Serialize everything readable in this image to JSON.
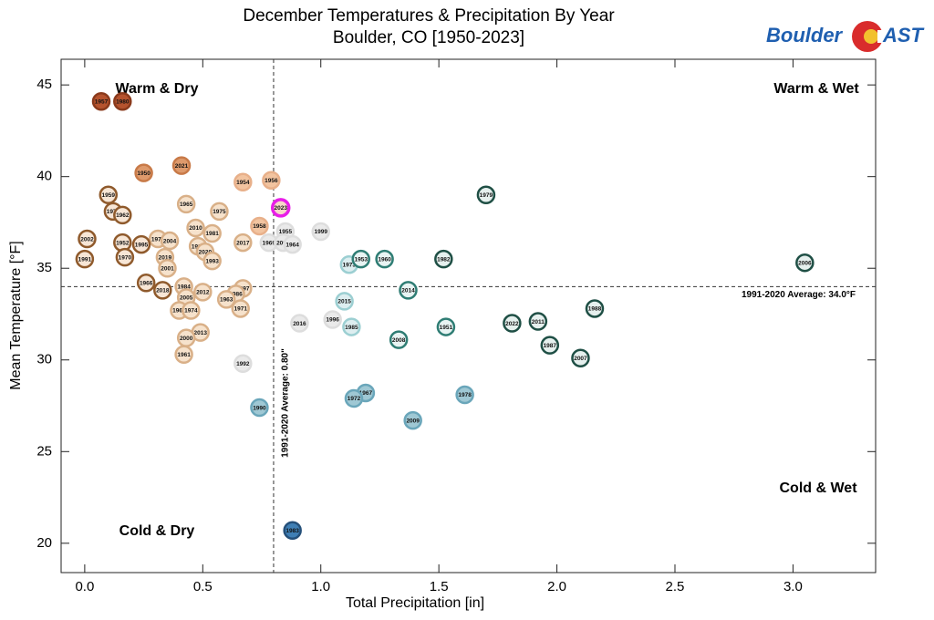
{
  "logo": {
    "left": "Boulder",
    "right": "AST"
  },
  "chart_data": {
    "type": "scatter",
    "title": "December Temperatures & Precipitation By Year",
    "subtitle": "Boulder, CO [1950-2023]",
    "x_label": "Total Precipitation [in]",
    "y_label": "Mean Temperature [°F]",
    "xlim": [
      -0.1,
      3.35
    ],
    "ylim": [
      18.4,
      46.4
    ],
    "xticks": [
      {
        "value": 0,
        "label": "0.0"
      },
      0.5,
      {
        "value": 1,
        "label": "1.0"
      },
      1.5,
      {
        "value": 2,
        "label": "2.0"
      },
      2.5,
      {
        "value": 3,
        "label": "3.0"
      }
    ],
    "yticks": [
      20,
      25,
      30,
      35,
      40,
      45
    ],
    "reference_lines": [
      {
        "axis": "y",
        "value": 34.0,
        "label": "1991-2020 Average: 34.0°F"
      },
      {
        "axis": "x",
        "value": 0.8,
        "label": "1991-2020 Average: 0.80\""
      }
    ],
    "quadrant_labels": [
      "Warm & Dry",
      "Warm & Wet",
      "Cold & Dry",
      "Cold & Wet"
    ],
    "point_labels": [
      "1957",
      "1980",
      "1950",
      "2021",
      "1954",
      "1956",
      "2023",
      "1959",
      "1965",
      "1975",
      "1977",
      "1962",
      "1958",
      "1955",
      "1999",
      "2010",
      "1981",
      "2002",
      "1976",
      "2004",
      "2017",
      "1952",
      "1995",
      "1969",
      "2003",
      "1964",
      "1994",
      "2020",
      "2019",
      "1970",
      "1993",
      "1991",
      "2001",
      "1973",
      "1953",
      "1960",
      "1982",
      "1979",
      "2006",
      "1966",
      "2018",
      "1984",
      "1997",
      "2014",
      "2012",
      "1986",
      "2005",
      "1963",
      "2015",
      "1971",
      "1968",
      "1974",
      "1988",
      "1996",
      "2016",
      "2011",
      "2022",
      "1985",
      "1951",
      "2013",
      "2000",
      "2008",
      "1987",
      "1961",
      "2007",
      "1992",
      "1990",
      "1967",
      "1972",
      "1978",
      "2009",
      "1983"
    ],
    "x": [
      0.07,
      0.16,
      0.25,
      0.41,
      0.67,
      0.79,
      0.83,
      0.1,
      0.43,
      0.57,
      0.12,
      0.16,
      0.74,
      0.85,
      1.0,
      0.47,
      0.54,
      0.01,
      0.31,
      0.36,
      0.67,
      0.16,
      0.24,
      0.78,
      0.84,
      0.88,
      0.48,
      0.51,
      0.34,
      0.17,
      0.54,
      0.0,
      0.35,
      1.12,
      1.17,
      1.27,
      1.52,
      1.7,
      3.05,
      0.26,
      0.33,
      0.42,
      0.67,
      1.37,
      0.5,
      0.64,
      0.43,
      0.6,
      1.1,
      0.66,
      0.4,
      0.45,
      2.16,
      1.05,
      0.91,
      1.92,
      1.81,
      1.13,
      1.53,
      0.49,
      0.43,
      1.33,
      1.97,
      0.42,
      2.1,
      0.67,
      0.74,
      1.19,
      1.14,
      1.61,
      1.39,
      0.88
    ],
    "values": [
      44.1,
      44.1,
      40.2,
      40.6,
      39.7,
      39.8,
      38.3,
      39.0,
      38.5,
      38.1,
      38.1,
      37.9,
      37.3,
      37.0,
      37.0,
      37.2,
      36.9,
      36.6,
      36.6,
      36.5,
      36.4,
      36.4,
      36.3,
      36.4,
      36.4,
      36.3,
      36.2,
      35.9,
      35.6,
      35.6,
      35.4,
      35.5,
      35.0,
      35.2,
      35.5,
      35.5,
      35.5,
      39.0,
      35.3,
      34.2,
      33.8,
      34.0,
      33.9,
      33.8,
      33.7,
      33.6,
      33.4,
      33.3,
      33.2,
      32.8,
      32.7,
      32.7,
      32.8,
      32.2,
      32.0,
      32.1,
      32.0,
      31.8,
      31.8,
      31.5,
      31.2,
      31.1,
      30.8,
      30.3,
      30.1,
      29.8,
      27.4,
      28.2,
      27.9,
      28.1,
      26.7,
      20.7
    ],
    "colors": [
      "#b5532e",
      "#b5532e",
      "#de9a6c",
      "#de9a6c",
      "#f2c4a0",
      "#f2c4a0",
      "#f7d8c8",
      "#f7e6d6",
      "#f6e2cc",
      "#f6e2cc",
      "#f7e6d6",
      "#f7e6d6",
      "#f2c4a0",
      "#eaeaea",
      "#eaeaea",
      "#f6e2cc",
      "#f6e2cc",
      "#f7e6d6",
      "#f6e2cc",
      "#f6e2cc",
      "#f6e2cc",
      "#f7e6d6",
      "#f7e6d6",
      "#eaeaea",
      "#eaeaea",
      "#eaeaea",
      "#f6e2cc",
      "#f6e2cc",
      "#f6e2cc",
      "#f7e6d6",
      "#f6e2cc",
      "#f7e6d6",
      "#f6e2cc",
      "#ddeef0",
      "#e8f4f3",
      "#e8f4f3",
      "#e6f0ee",
      "#e6f0ee",
      "#e6f0ee",
      "#f7e6d6",
      "#f7e6d6",
      "#f6e2cc",
      "#f6e2cc",
      "#e8f4f3",
      "#f6e2cc",
      "#f6e2cc",
      "#f6e2cc",
      "#f6e2cc",
      "#ddeef0",
      "#f6e2cc",
      "#f6e2cc",
      "#f6e2cc",
      "#e6f0ee",
      "#eaeaea",
      "#eaeaea",
      "#e6f0ee",
      "#e6f0ee",
      "#ddeef0",
      "#e8f4f3",
      "#f6e2cc",
      "#f6e2cc",
      "#e8f4f3",
      "#e6f0ee",
      "#f6e2cc",
      "#e6f0ee",
      "#eaeaea",
      "#9fc8d4",
      "#9fc8d4",
      "#9fc8d4",
      "#9fc8d4",
      "#9fc8d4",
      "#3f7fb5"
    ],
    "edge_colors": [
      "#8a3a1c",
      "#8a3a1c",
      "#c87a48",
      "#c87a48",
      "#e8b08a",
      "#e8b08a",
      "#e81ee8",
      "#8f5a2c",
      "#d9b088",
      "#d9b088",
      "#8f5a2c",
      "#8f5a2c",
      "#e8b08a",
      "#dddddd",
      "#dddddd",
      "#d9b088",
      "#d9b088",
      "#8f5a2c",
      "#d9b088",
      "#d9b088",
      "#d9b088",
      "#8f5a2c",
      "#8f5a2c",
      "#dddddd",
      "#dddddd",
      "#dddddd",
      "#d9b088",
      "#d9b088",
      "#d9b088",
      "#8f5a2c",
      "#d9b088",
      "#8f5a2c",
      "#d9b088",
      "#9ccfd2",
      "#2f7d74",
      "#2f7d74",
      "#1f4f45",
      "#1f4f45",
      "#1f4f45",
      "#8f5a2c",
      "#8f5a2c",
      "#d9b088",
      "#d9b088",
      "#2f7d74",
      "#d9b088",
      "#d9b088",
      "#d9b088",
      "#d9b088",
      "#9ccfd2",
      "#d9b088",
      "#d9b088",
      "#d9b088",
      "#1f4f45",
      "#dddddd",
      "#dddddd",
      "#1f4f45",
      "#1f4f45",
      "#9ccfd2",
      "#2f7d74",
      "#d9b088",
      "#d9b088",
      "#2f7d74",
      "#1f4f45",
      "#d9b088",
      "#1f4f45",
      "#dddddd",
      "#6aa6ba",
      "#6aa6ba",
      "#6aa6ba",
      "#6aa6ba",
      "#6aa6ba",
      "#25507a"
    ]
  }
}
